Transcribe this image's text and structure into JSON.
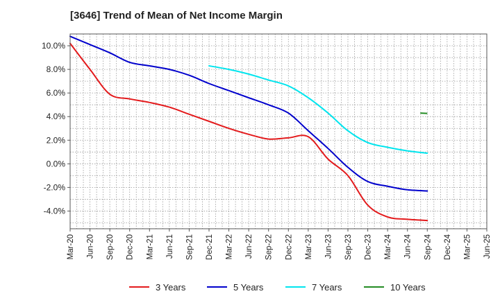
{
  "chart_data": {
    "type": "line",
    "title": "[3646]  Trend of Mean of Net Income Margin",
    "xlabel": "",
    "ylabel": "",
    "ylim": [
      -5.5,
      11
    ],
    "grid": true,
    "legend_position": "bottom",
    "y_ticks": [
      -4,
      -2,
      0,
      2,
      4,
      6,
      8,
      10
    ],
    "y_tick_labels": [
      "-4.0%",
      "-2.0%",
      "0.0%",
      "2.0%",
      "4.0%",
      "6.0%",
      "8.0%",
      "10.0%"
    ],
    "x_labels": [
      "Mar-20",
      "Jun-20",
      "Sep-20",
      "Dec-20",
      "Mar-21",
      "Jun-21",
      "Sep-21",
      "Dec-21",
      "Mar-22",
      "Jun-22",
      "Sep-22",
      "Dec-22",
      "Mar-23",
      "Jun-23",
      "Sep-23",
      "Dec-23",
      "Mar-24",
      "Jun-24",
      "Sep-24",
      "Dec-24",
      "Mar-25",
      "Jun-25"
    ],
    "series": [
      {
        "name": "3 Years",
        "color": "#e31a1c",
        "values": [
          10.2,
          8.0,
          5.9,
          5.5,
          5.2,
          4.8,
          4.2,
          3.6,
          3.0,
          2.5,
          2.1,
          2.2,
          2.3,
          0.4,
          -1.0,
          -3.5,
          -4.5,
          -4.7,
          -4.8,
          null,
          null,
          null
        ]
      },
      {
        "name": "5 Years",
        "color": "#0000cc",
        "values": [
          10.8,
          10.1,
          9.4,
          8.6,
          8.3,
          8.0,
          7.5,
          6.8,
          6.2,
          5.6,
          5.0,
          4.3,
          2.8,
          1.3,
          -0.3,
          -1.5,
          -1.9,
          -2.2,
          -2.3,
          null,
          null,
          null
        ]
      },
      {
        "name": "7 Years",
        "color": "#00e5ee",
        "values": [
          null,
          null,
          null,
          null,
          null,
          null,
          null,
          8.3,
          8.0,
          7.6,
          7.1,
          6.6,
          5.6,
          4.3,
          2.8,
          1.8,
          1.4,
          1.1,
          0.9,
          null,
          null,
          null
        ]
      },
      {
        "name": "10 Years",
        "color": "#228b22",
        "values": [
          null,
          null,
          null,
          null,
          null,
          null,
          null,
          null,
          null,
          null,
          null,
          null,
          null,
          null,
          null,
          null,
          null,
          null,
          4.3,
          null,
          null,
          null
        ]
      }
    ]
  }
}
